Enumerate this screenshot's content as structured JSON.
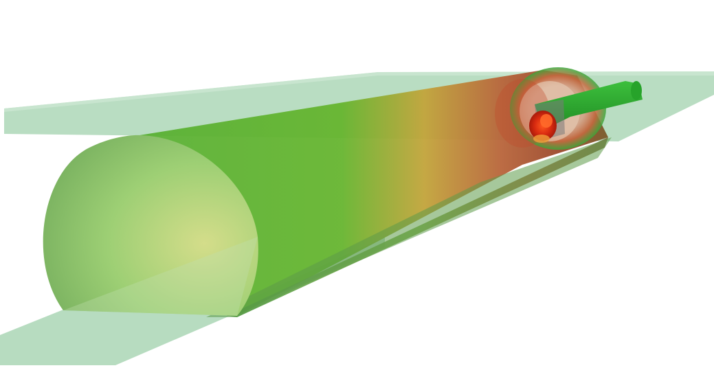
{
  "scene": {
    "background_color": "#ffffff",
    "colors": {
      "plane_fill": "#b7dcc0",
      "plane_fill_top": "#f8f8f8",
      "tunnel_green": "#5fb83a",
      "tunnel_dark_green": "#3f8f2a",
      "tunnel_face_light": "#c9d98a",
      "heat_orange": "#c98a3a",
      "heat_red": "#b04a30",
      "hot_spot_red": "#e02a10",
      "inner_pipe_green": "#2fae2f"
    }
  }
}
